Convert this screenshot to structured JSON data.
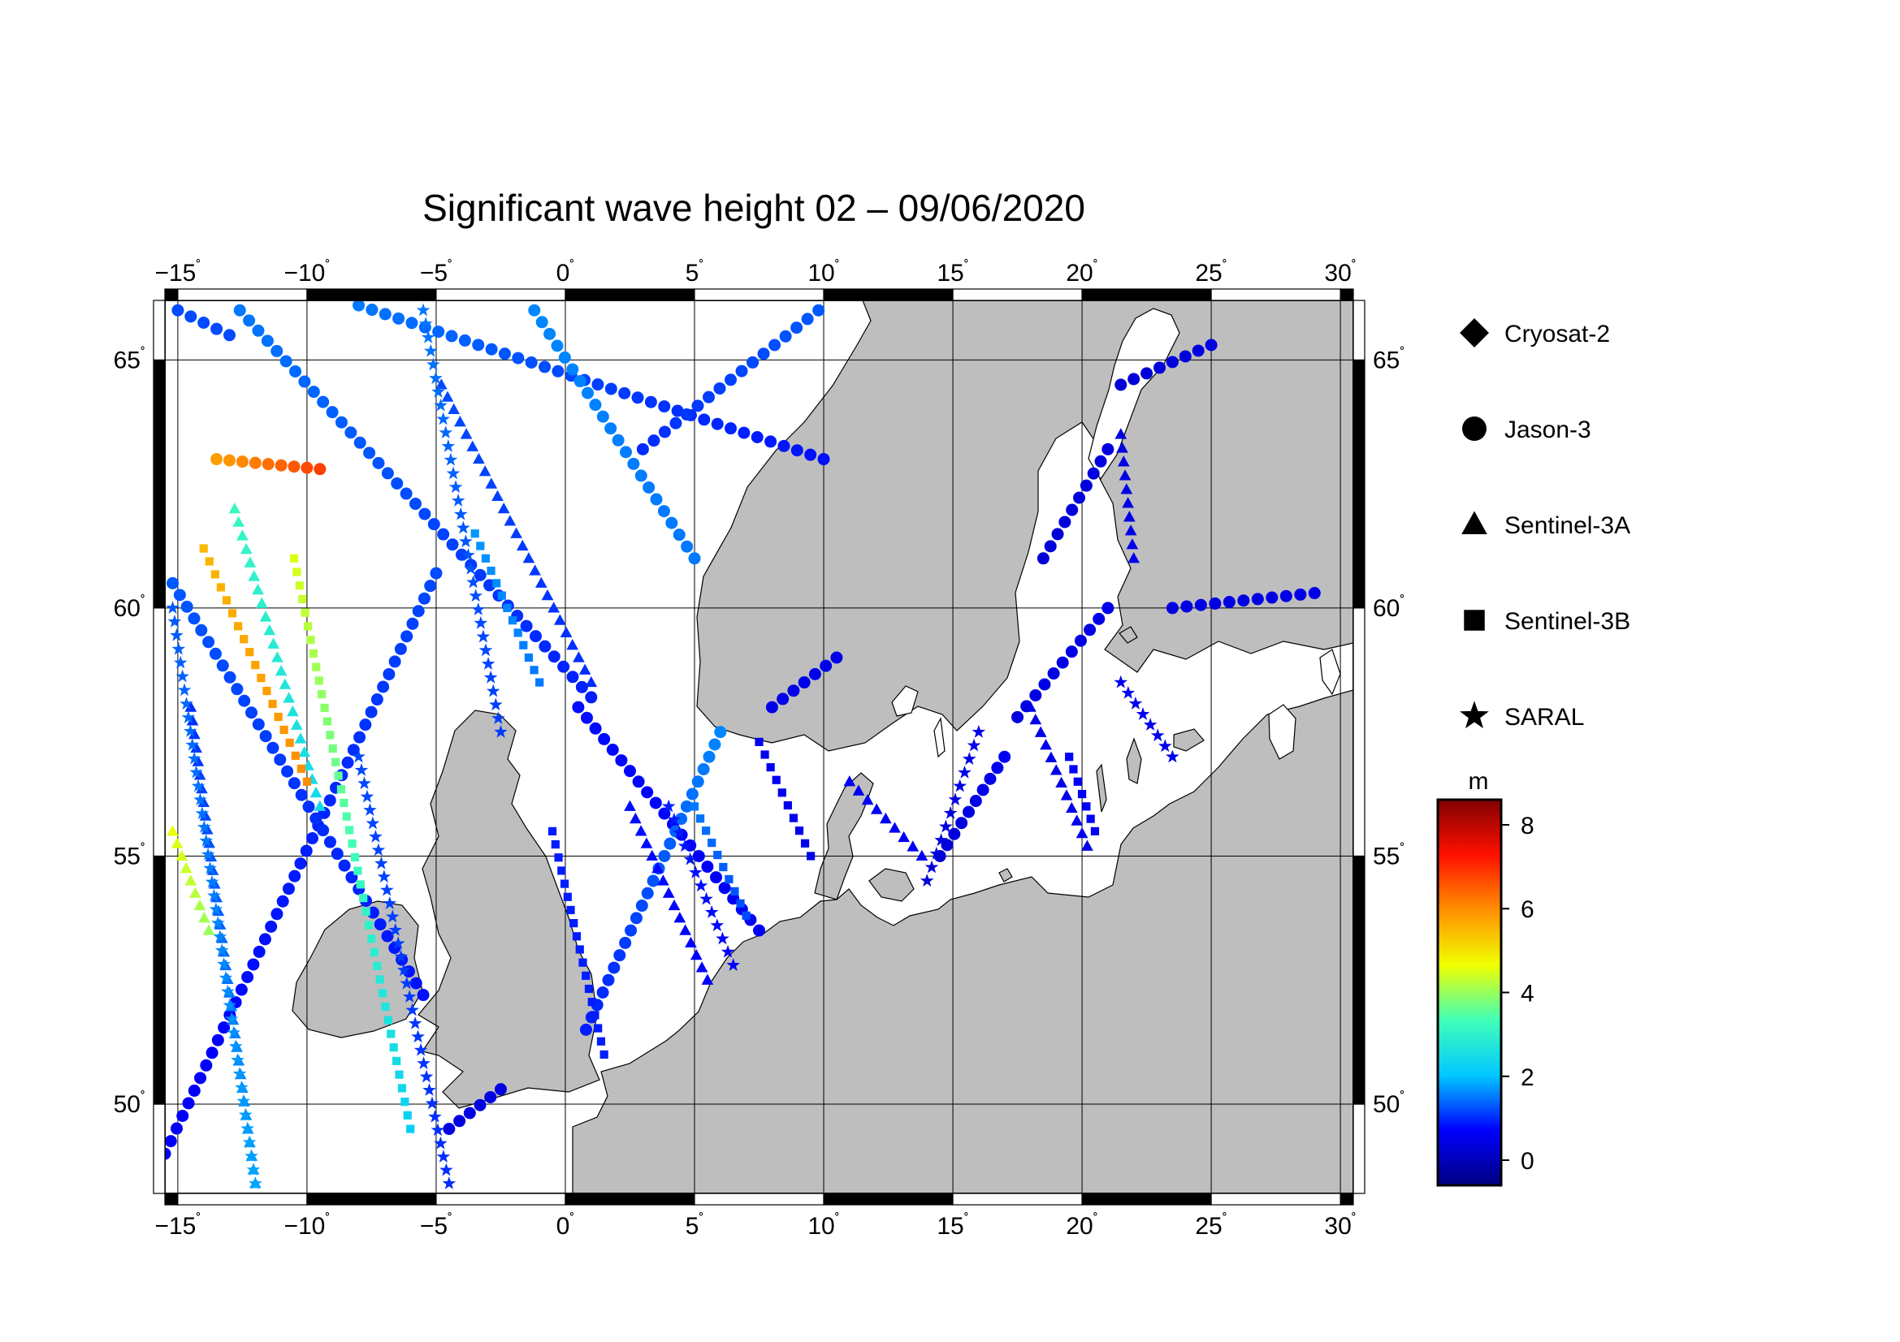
{
  "title": "Significant wave height 02 – 09/06/2020",
  "map": {
    "lon_range": [
      -15.5,
      30.5
    ],
    "lat_range": [
      48.2,
      66.2
    ],
    "lon_ticks": [
      {
        "value": -15,
        "label": "−15"
      },
      {
        "value": -10,
        "label": "−10"
      },
      {
        "value": -5,
        "label": "−5"
      },
      {
        "value": 0,
        "label": "0"
      },
      {
        "value": 5,
        "label": "5"
      },
      {
        "value": 10,
        "label": "10"
      },
      {
        "value": 15,
        "label": "15"
      },
      {
        "value": 20,
        "label": "20"
      },
      {
        "value": 25,
        "label": "25"
      },
      {
        "value": 30,
        "label": "30"
      }
    ],
    "lat_ticks": [
      {
        "value": 50,
        "label": "50"
      },
      {
        "value": 55,
        "label": "55"
      },
      {
        "value": 60,
        "label": "60"
      },
      {
        "value": 65,
        "label": "65"
      }
    ],
    "degree_symbol": "˚",
    "land_color": "#bebebe",
    "sea_color": "#ffffff",
    "coast_color": "#000000",
    "grid_color": "#000000"
  },
  "legend": {
    "items": [
      {
        "label": "Cryosat-2",
        "symbol": "diamond"
      },
      {
        "label": "Jason-3",
        "symbol": "circle"
      },
      {
        "label": "Sentinel-3A",
        "symbol": "triangle"
      },
      {
        "label": "Sentinel-3B",
        "symbol": "square"
      },
      {
        "label": "SARAL",
        "symbol": "star"
      }
    ]
  },
  "colorbar": {
    "unit": "m",
    "min": -0.6,
    "max": 8.6,
    "ticks": [
      {
        "value": 0,
        "label": "0"
      },
      {
        "value": 2,
        "label": "2"
      },
      {
        "value": 4,
        "label": "4"
      },
      {
        "value": 6,
        "label": "6"
      },
      {
        "value": 8,
        "label": "8"
      }
    ],
    "colormap": [
      "#000080",
      "#0000ff",
      "#00c8ff",
      "#40ffb8",
      "#f0ff00",
      "#ff9000",
      "#ff1000",
      "#800000"
    ]
  },
  "chart_data": {
    "type": "scatter",
    "title": "Significant wave height 02 – 09/06/2020",
    "xlabel": "",
    "ylabel": "",
    "xlim": [
      -15.5,
      30.5
    ],
    "ylim": [
      48.2,
      66.2
    ],
    "color_variable": "Significant wave height (m)",
    "legend": "right",
    "series": [
      {
        "name": "Jason-3",
        "symbol": "circle",
        "tracks": [
          {
            "p0": [
              -15.5,
              49.0
            ],
            "p1": [
              -5.0,
              60.7
            ],
            "swh0": 0.6,
            "swh1": 1.2
          },
          {
            "p0": [
              -15.2,
              60.5
            ],
            "p1": [
              -5.5,
              52.2
            ],
            "swh0": 1.3,
            "swh1": 0.8
          },
          {
            "p0": [
              -12.6,
              66.0
            ],
            "p1": [
              1.0,
              58.2
            ],
            "swh0": 1.5,
            "swh1": 0.9
          },
          {
            "p0": [
              -8.0,
              66.1
            ],
            "p1": [
              10.0,
              63.0
            ],
            "swh0": 1.5,
            "swh1": 0.8
          },
          {
            "p0": [
              0.5,
              58.0
            ],
            "p1": [
              7.5,
              53.5
            ],
            "swh0": 0.8,
            "swh1": 0.6
          },
          {
            "p0": [
              3.0,
              63.2
            ],
            "p1": [
              9.8,
              66.0
            ],
            "swh0": 1.0,
            "swh1": 1.3
          },
          {
            "p0": [
              -1.2,
              66.0
            ],
            "p1": [
              5.0,
              61.0
            ],
            "swh0": 1.6,
            "swh1": 1.5
          },
          {
            "p0": [
              0.8,
              51.5
            ],
            "p1": [
              6.0,
              57.5
            ],
            "swh0": 0.9,
            "swh1": 1.6
          },
          {
            "p0": [
              -4.5,
              49.5
            ],
            "p1": [
              -2.5,
              50.3
            ],
            "swh0": 0.4,
            "swh1": 0.4
          },
          {
            "p0": [
              8.0,
              58.0
            ],
            "p1": [
              10.5,
              59.0
            ],
            "swh0": 0.5,
            "swh1": 0.5
          },
          {
            "p0": [
              14.5,
              55.0
            ],
            "p1": [
              17.0,
              57.0
            ],
            "swh0": 0.3,
            "swh1": 0.6
          },
          {
            "p0": [
              17.5,
              57.8
            ],
            "p1": [
              21.0,
              60.0
            ],
            "swh0": 0.4,
            "swh1": 0.5
          },
          {
            "p0": [
              23.5,
              60.0
            ],
            "p1": [
              29.0,
              60.3
            ],
            "swh0": 0.4,
            "swh1": 0.5
          },
          {
            "p0": [
              18.5,
              61.0
            ],
            "p1": [
              21.0,
              63.2
            ],
            "swh0": 0.3,
            "swh1": 0.4
          },
          {
            "p0": [
              21.5,
              64.5
            ],
            "p1": [
              25.0,
              65.3
            ],
            "swh0": 0.3,
            "swh1": 0.4
          },
          {
            "p0": [
              -15.0,
              66.0
            ],
            "p1": [
              -13.0,
              65.5
            ],
            "swh0": 1.2,
            "swh1": 1.2
          },
          {
            "p0": [
              -13.5,
              63.0
            ],
            "p1": [
              -9.5,
              62.8
            ],
            "swh0": 5.8,
            "swh1": 6.8
          }
        ]
      },
      {
        "name": "Sentinel-3A",
        "symbol": "triangle",
        "tracks": [
          {
            "p0": [
              -14.5,
              58.0
            ],
            "p1": [
              -12.0,
              48.4
            ],
            "swh0": 1.0,
            "swh1": 1.8
          },
          {
            "p0": [
              -12.8,
              62.0
            ],
            "p1": [
              -9.5,
              56.0
            ],
            "swh0": 3.2,
            "swh1": 2.4
          },
          {
            "p0": [
              -4.8,
              64.5
            ],
            "p1": [
              1.0,
              58.5
            ],
            "swh0": 1.2,
            "swh1": 1.0
          },
          {
            "p0": [
              2.5,
              56.0
            ],
            "p1": [
              5.5,
              52.5
            ],
            "swh0": 0.8,
            "swh1": 0.7
          },
          {
            "p0": [
              11.0,
              56.5
            ],
            "p1": [
              13.8,
              55.0
            ],
            "swh0": 0.6,
            "swh1": 0.6
          },
          {
            "p0": [
              18.0,
              58.0
            ],
            "p1": [
              20.2,
              55.2
            ],
            "swh0": 0.5,
            "swh1": 0.5
          },
          {
            "p0": [
              21.5,
              63.5
            ],
            "p1": [
              22.0,
              61.0
            ],
            "swh0": 0.4,
            "swh1": 0.5
          },
          {
            "p0": [
              -15.2,
              55.5
            ],
            "p1": [
              -13.8,
              53.5
            ],
            "swh0": 4.6,
            "swh1": 4.0
          }
        ]
      },
      {
        "name": "Sentinel-3B",
        "symbol": "square",
        "tracks": [
          {
            "p0": [
              -14.0,
              61.2
            ],
            "p1": [
              -10.0,
              56.5
            ],
            "swh0": 5.5,
            "swh1": 6.0
          },
          {
            "p0": [
              -10.5,
              61.0
            ],
            "p1": [
              -6.0,
              49.5
            ],
            "swh0": 4.5,
            "swh1": 2.2
          },
          {
            "p0": [
              -3.5,
              61.5
            ],
            "p1": [
              -1.0,
              58.5
            ],
            "swh0": 1.7,
            "swh1": 1.5
          },
          {
            "p0": [
              -0.5,
              55.5
            ],
            "p1": [
              1.5,
              51.0
            ],
            "swh0": 0.9,
            "swh1": 0.9
          },
          {
            "p0": [
              5.0,
              56.0
            ],
            "p1": [
              7.0,
              53.8
            ],
            "swh0": 1.5,
            "swh1": 1.2
          },
          {
            "p0": [
              7.5,
              57.3
            ],
            "p1": [
              9.5,
              55.0
            ],
            "swh0": 0.6,
            "swh1": 0.5
          },
          {
            "p0": [
              19.5,
              57.0
            ],
            "p1": [
              20.5,
              55.5
            ],
            "swh0": 0.7,
            "swh1": 0.6
          }
        ]
      },
      {
        "name": "SARAL",
        "symbol": "star",
        "tracks": [
          {
            "p0": [
              -15.2,
              60.0
            ],
            "p1": [
              -12.0,
              48.4
            ],
            "swh0": 1.3,
            "swh1": 1.8
          },
          {
            "p0": [
              -8.0,
              57.0
            ],
            "p1": [
              -4.5,
              48.4
            ],
            "swh0": 1.2,
            "swh1": 1.0
          },
          {
            "p0": [
              -5.5,
              66.0
            ],
            "p1": [
              -2.5,
              57.5
            ],
            "swh0": 1.5,
            "swh1": 1.1
          },
          {
            "p0": [
              4.0,
              56.0
            ],
            "p1": [
              6.5,
              52.8
            ],
            "swh0": 0.9,
            "swh1": 0.7
          },
          {
            "p0": [
              14.0,
              54.5
            ],
            "p1": [
              16.0,
              57.5
            ],
            "swh0": 0.3,
            "swh1": 0.5
          },
          {
            "p0": [
              21.5,
              58.5
            ],
            "p1": [
              23.5,
              57.0
            ],
            "swh0": 0.5,
            "swh1": 0.5
          }
        ]
      }
    ]
  }
}
